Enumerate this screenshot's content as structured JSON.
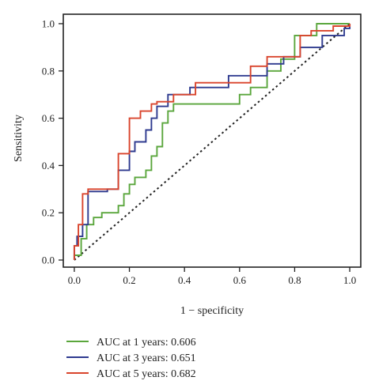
{
  "chart_data": {
    "type": "line",
    "xlabel": "1 − specificity",
    "ylabel": "Sensitivity",
    "xlim": [
      -0.04,
      1.04
    ],
    "ylim": [
      -0.03,
      1.04
    ],
    "x_ticks": [
      0.0,
      0.2,
      0.4,
      0.6,
      0.8,
      1.0
    ],
    "x_tick_labels": [
      "0.0",
      "0.2",
      "0.4",
      "0.6",
      "0.8",
      "1.0"
    ],
    "y_ticks": [
      0.0,
      0.2,
      0.4,
      0.6,
      0.8,
      1.0
    ],
    "y_tick_labels": [
      "0.0",
      "0.2",
      "0.4",
      "0.6",
      "0.8",
      "1.0"
    ],
    "grid": false,
    "legend_position": "below",
    "reference_line": {
      "x": [
        0,
        1
      ],
      "y": [
        0,
        1
      ],
      "style": "dotted",
      "color": "#222222"
    },
    "series": [
      {
        "name": "AUC at 1 years: 0.606",
        "color": "#5aa63c",
        "x": [
          0.0,
          0.0,
          0.025,
          0.025,
          0.045,
          0.045,
          0.07,
          0.07,
          0.1,
          0.1,
          0.16,
          0.16,
          0.18,
          0.18,
          0.2,
          0.2,
          0.22,
          0.22,
          0.26,
          0.26,
          0.28,
          0.28,
          0.3,
          0.3,
          0.32,
          0.32,
          0.34,
          0.34,
          0.36,
          0.36,
          0.6,
          0.6,
          0.64,
          0.64,
          0.7,
          0.7,
          0.75,
          0.75,
          0.8,
          0.8,
          0.88,
          0.88,
          1.0,
          1.0
        ],
        "y": [
          0.0,
          0.02,
          0.02,
          0.09,
          0.09,
          0.15,
          0.15,
          0.18,
          0.18,
          0.2,
          0.2,
          0.23,
          0.23,
          0.28,
          0.28,
          0.32,
          0.32,
          0.35,
          0.35,
          0.38,
          0.38,
          0.44,
          0.44,
          0.48,
          0.48,
          0.58,
          0.58,
          0.63,
          0.63,
          0.66,
          0.66,
          0.7,
          0.7,
          0.73,
          0.73,
          0.8,
          0.8,
          0.85,
          0.85,
          0.95,
          0.95,
          1.0,
          1.0,
          1.0
        ]
      },
      {
        "name": "AUC at 3 years: 0.651",
        "color": "#2e3a8f",
        "x": [
          0.0,
          0.0,
          0.01,
          0.01,
          0.03,
          0.03,
          0.05,
          0.05,
          0.12,
          0.12,
          0.16,
          0.16,
          0.2,
          0.2,
          0.22,
          0.22,
          0.26,
          0.26,
          0.28,
          0.28,
          0.3,
          0.3,
          0.34,
          0.34,
          0.42,
          0.42,
          0.56,
          0.56,
          0.7,
          0.7,
          0.76,
          0.76,
          0.82,
          0.82,
          0.9,
          0.9,
          0.98,
          0.98,
          1.0,
          1.0
        ],
        "y": [
          0.0,
          0.06,
          0.06,
          0.1,
          0.1,
          0.15,
          0.15,
          0.29,
          0.29,
          0.3,
          0.3,
          0.38,
          0.38,
          0.46,
          0.46,
          0.5,
          0.5,
          0.55,
          0.55,
          0.6,
          0.6,
          0.65,
          0.65,
          0.7,
          0.7,
          0.73,
          0.73,
          0.78,
          0.78,
          0.83,
          0.83,
          0.86,
          0.86,
          0.9,
          0.9,
          0.95,
          0.95,
          0.98,
          0.98,
          1.0
        ]
      },
      {
        "name": "AUC at 5 years: 0.682",
        "color": "#d9442c",
        "x": [
          0.0,
          0.0,
          0.015,
          0.015,
          0.03,
          0.03,
          0.05,
          0.05,
          0.16,
          0.16,
          0.2,
          0.2,
          0.24,
          0.24,
          0.28,
          0.28,
          0.3,
          0.3,
          0.36,
          0.36,
          0.44,
          0.44,
          0.64,
          0.64,
          0.7,
          0.7,
          0.82,
          0.82,
          0.86,
          0.86,
          0.94,
          0.94,
          1.0,
          1.0
        ],
        "y": [
          0.0,
          0.06,
          0.06,
          0.15,
          0.15,
          0.28,
          0.28,
          0.3,
          0.3,
          0.45,
          0.45,
          0.6,
          0.6,
          0.63,
          0.63,
          0.66,
          0.66,
          0.67,
          0.67,
          0.7,
          0.7,
          0.75,
          0.75,
          0.82,
          0.82,
          0.86,
          0.86,
          0.95,
          0.95,
          0.97,
          0.97,
          0.99,
          0.99,
          1.0
        ]
      }
    ]
  }
}
